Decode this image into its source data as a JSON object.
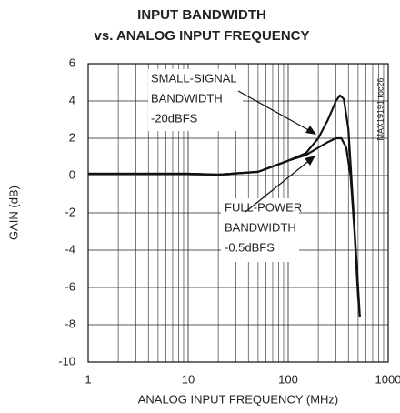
{
  "chart_data": {
    "type": "line",
    "title": [
      "INPUT BANDWIDTH",
      "vs. ANALOG INPUT FREQUENCY"
    ],
    "x_label": "ANALOG INPUT FREQUENCY (MHz)",
    "y_label": "GAIN (dB)",
    "side_note": "MAX19191 toc26",
    "xscale": "log",
    "minor_grid": true,
    "grid": true,
    "xlim": [
      1,
      1000
    ],
    "xticks": [
      1,
      10,
      100,
      1000
    ],
    "ylim": [
      -10,
      6
    ],
    "yticks": [
      -10,
      -8,
      -6,
      -4,
      -2,
      0,
      2,
      4,
      6
    ],
    "series": [
      {
        "name": "SMALL-SIGNAL BANDWIDTH -20dBFS",
        "color": "#111111",
        "x": [
          1,
          10,
          20,
          50,
          80,
          100,
          150,
          200,
          250,
          300,
          330,
          360,
          400,
          450,
          500,
          520
        ],
        "values": [
          0.1,
          0.1,
          0.05,
          0.2,
          0.6,
          0.8,
          1.2,
          2,
          3,
          4,
          4.3,
          4.1,
          2.5,
          -2,
          -6,
          -7.6
        ]
      },
      {
        "name": "FULL-POWER BANDWIDTH -0.5dBFS",
        "color": "#111111",
        "x": [
          1,
          10,
          20,
          50,
          80,
          100,
          150,
          200,
          250,
          300,
          340,
          380,
          420,
          460,
          500,
          520
        ],
        "values": [
          0.1,
          0.1,
          0.05,
          0.2,
          0.6,
          0.8,
          1.1,
          1.5,
          1.8,
          2,
          2,
          1.5,
          0,
          -3,
          -6.5,
          -7.6
        ]
      }
    ],
    "annotations": [
      {
        "lines": [
          "SMALL-SIGNAL",
          "BANDWIDTH",
          "-20dBFS"
        ]
      },
      {
        "lines": [
          "FULL-POWER",
          "BANDWIDTH",
          "-0.5dBFS"
        ]
      }
    ]
  }
}
